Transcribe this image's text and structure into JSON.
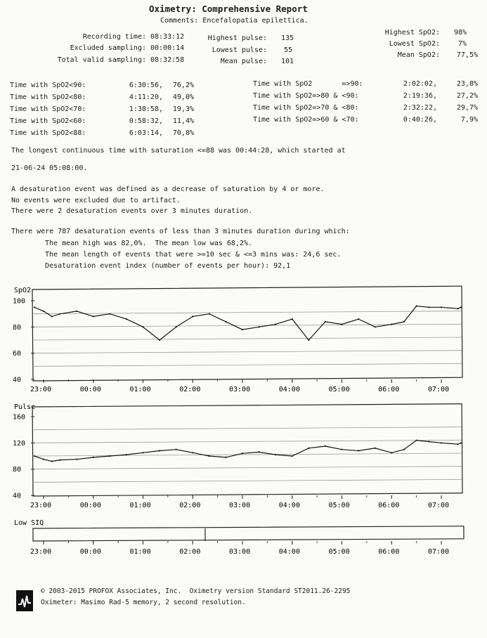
{
  "header": {
    "title": "Oximetry: Comprehensive Report",
    "comments": "Comments: Encefalopatia epilettica."
  },
  "summary": {
    "left": [
      {
        "label": "Recording time:",
        "value": "08:33:12"
      },
      {
        "label": "Excluded sampling:",
        "value": "00:00:14"
      },
      {
        "label": "Total valid sampling:",
        "value": "08:32:58"
      }
    ],
    "middle": [
      {
        "label": "Highest pulse:",
        "value": "135"
      },
      {
        "label": "Lowest pulse:",
        "value": "55"
      },
      {
        "label": "Mean pulse:",
        "value": "101"
      }
    ],
    "right": [
      {
        "label": "Highest SpO2:",
        "value": "98%"
      },
      {
        "label": "Lowest SpO2:",
        "value": "7%"
      },
      {
        "label": "Mean SpO2:",
        "value": "77,5%"
      }
    ]
  },
  "time_below": [
    {
      "label": "Time with SpO2<90:",
      "time": "6:30:56,",
      "pct": "76,2%"
    },
    {
      "label": "Time with SpO2<80:",
      "time": "4:11:20,",
      "pct": "49,0%"
    },
    {
      "label": "Time with SpO2<70:",
      "time": "1:38:58,",
      "pct": "19,3%"
    },
    {
      "label": "Time with SpO2<60:",
      "time": "0:58:32,",
      "pct": "11,4%"
    },
    {
      "label": "Time with SpO2<88:",
      "time": "6:03:14,",
      "pct": "70,8%"
    }
  ],
  "time_ranges": [
    {
      "label": "Time with SpO2       =>90:",
      "time": "2:02:02,",
      "pct": "23,8%"
    },
    {
      "label": "Time with SpO2=>80 & <90:",
      "time": "2:19:36,",
      "pct": "27,2%"
    },
    {
      "label": "Time with SpO2=>70 & <80:",
      "time": "2:32:22,",
      "pct": "29,7%"
    },
    {
      "label": "Time with SpO2=>60 & <70:",
      "time": "0:40:26,",
      "pct": "7,9%"
    }
  ],
  "narrative": {
    "longest_1": "The longest continuous time with saturation <=88 was 00:44:28, which started at",
    "longest_2": "21-06-24 05:08:00.",
    "def_1": "A desaturation event was defined as a decrease of saturation by 4 or more.",
    "def_2": "No events were excluded due to artifact.",
    "def_3": "There were 2 desaturation events over 3 minutes duration.",
    "ev_1": "There were 787 desaturation events of less than 3 minutes duration during which:",
    "ev_2": "The mean high was 82,0%.  The mean low was 68,2%.",
    "ev_3": "The mean length of events that were >=10 sec & <=3 mins was: 24,6 sec.",
    "ev_4": "Desaturation event index (number of events per hour): 92,1"
  },
  "chart_data": [
    {
      "type": "line",
      "ylabel": "SpO2",
      "ylim": [
        40,
        100
      ],
      "yticks": [
        "100",
        "80",
        "60",
        "40"
      ],
      "xticks": [
        "23:00",
        "00:00",
        "01:00",
        "02:00",
        "03:00",
        "04:00",
        "05:00",
        "06:00",
        "07:00"
      ],
      "x": [
        "22:40",
        "23:00",
        "23:10",
        "23:20",
        "23:40",
        "00:00",
        "00:20",
        "00:40",
        "01:00",
        "01:20",
        "01:40",
        "02:00",
        "02:20",
        "02:40",
        "03:00",
        "03:20",
        "03:40",
        "04:00",
        "04:20",
        "04:40",
        "05:00",
        "05:20",
        "05:40",
        "06:00",
        "06:15",
        "06:30",
        "06:45",
        "07:00",
        "07:20",
        "07:35"
      ],
      "values": [
        95,
        92,
        88,
        90,
        92,
        88,
        90,
        86,
        80,
        70,
        80,
        88,
        90,
        84,
        78,
        80,
        82,
        86,
        70,
        84,
        82,
        86,
        80,
        82,
        84,
        96,
        95,
        95,
        94,
        95
      ],
      "grid": true
    },
    {
      "type": "line",
      "ylabel": "Pulse",
      "ylim": [
        40,
        160
      ],
      "yticks": [
        "160",
        "120",
        "80",
        "40"
      ],
      "xticks": [
        "23:00",
        "00:00",
        "01:00",
        "02:00",
        "03:00",
        "04:00",
        "05:00",
        "06:00",
        "07:00"
      ],
      "x": [
        "22:40",
        "23:00",
        "23:10",
        "23:20",
        "23:40",
        "00:00",
        "00:20",
        "00:40",
        "01:00",
        "01:20",
        "01:40",
        "02:00",
        "02:20",
        "02:40",
        "03:00",
        "03:20",
        "03:40",
        "04:00",
        "04:20",
        "04:40",
        "05:00",
        "05:20",
        "05:40",
        "06:00",
        "06:15",
        "06:30",
        "06:45",
        "07:00",
        "07:20",
        "07:35"
      ],
      "values": [
        100,
        95,
        92,
        94,
        95,
        98,
        100,
        102,
        105,
        108,
        110,
        105,
        100,
        98,
        104,
        106,
        102,
        100,
        112,
        115,
        110,
        108,
        112,
        105,
        110,
        124,
        122,
        120,
        118,
        120
      ],
      "grid": true
    },
    {
      "type": "bar",
      "ylabel": "Low SIQ",
      "xticks": [
        "23:00",
        "00:00",
        "01:00",
        "02:00",
        "03:00",
        "04:00",
        "05:00",
        "06:00",
        "07:00"
      ],
      "events": [
        "02:15"
      ]
    }
  ],
  "footer": {
    "line_1": "© 2003-2015 PROFOX Associates, Inc.  Oximetry version Standard ST2011.26-2295",
    "line_2": "Oximeter: Masimo Rad-5 memory, 2 second resolution."
  }
}
